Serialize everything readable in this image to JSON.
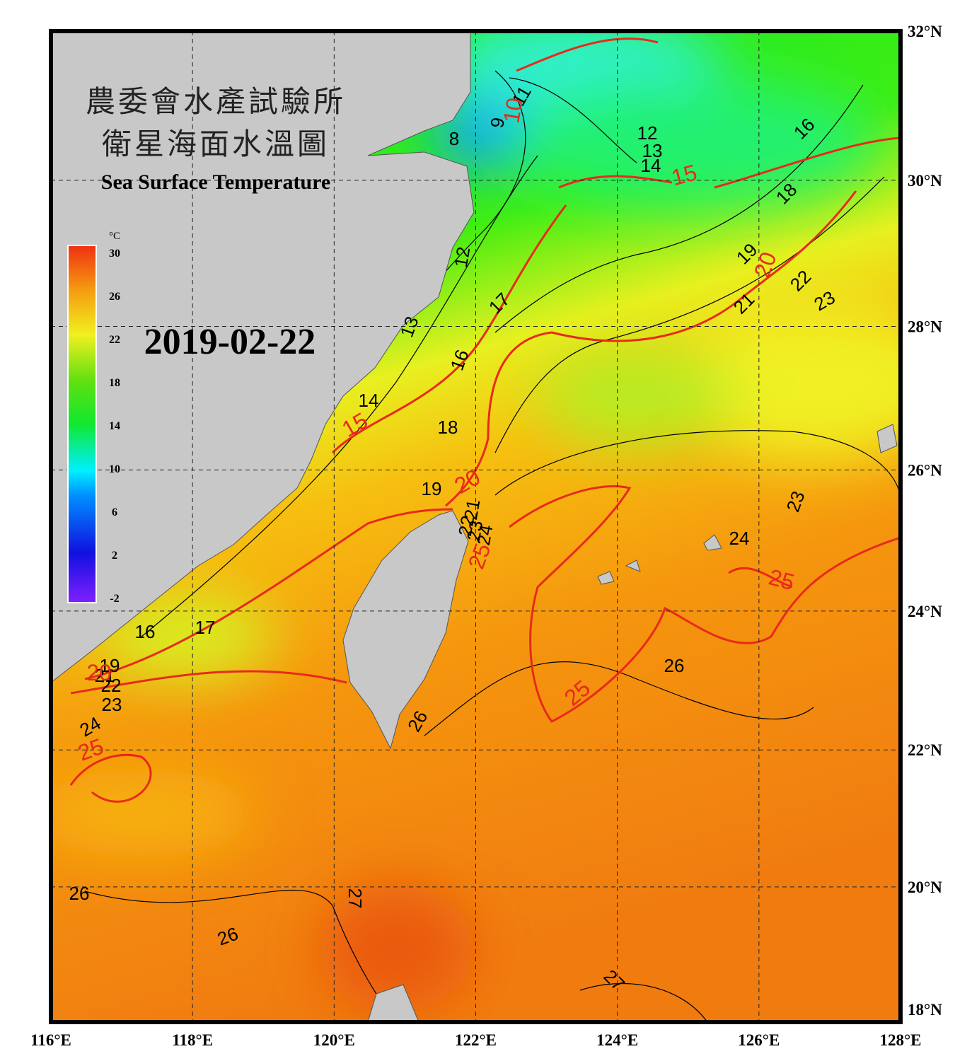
{
  "title": {
    "line1": "農委會水產試驗所",
    "line2": "衛星海面水溫圖",
    "english": "Sea Surface Temperature"
  },
  "date": "2019-02-22",
  "colorbar": {
    "unit": "°C",
    "ticks": [
      30,
      26,
      22,
      18,
      14,
      10,
      6,
      2,
      -2
    ]
  },
  "map": {
    "xticks": [
      {
        "value": 116,
        "label": "116°E"
      },
      {
        "value": 118,
        "label": "118°E"
      },
      {
        "value": 120,
        "label": "120°E"
      },
      {
        "value": 122,
        "label": "122°E"
      },
      {
        "value": 124,
        "label": "124°E"
      },
      {
        "value": 126,
        "label": "126°E"
      },
      {
        "value": 128,
        "label": "128°E"
      }
    ],
    "yticks": [
      {
        "value": 32,
        "label": "32°N"
      },
      {
        "value": 30,
        "label": "30°N"
      },
      {
        "value": 28,
        "label": "28°N"
      },
      {
        "value": 26,
        "label": "26°N"
      },
      {
        "value": 24,
        "label": "24°N"
      },
      {
        "value": 22,
        "label": "22°N"
      },
      {
        "value": 20,
        "label": "20°N"
      },
      {
        "value": 18,
        "label": "18°N"
      }
    ],
    "contour_labels": {
      "black": [
        11,
        9,
        8,
        12,
        13,
        14,
        16,
        18,
        19,
        21,
        22,
        23,
        12,
        13,
        17,
        16,
        14,
        18,
        19,
        21,
        22,
        23,
        24,
        23,
        24,
        26,
        26,
        16,
        17,
        19,
        21,
        22,
        23,
        24,
        26,
        27,
        26,
        27
      ],
      "red": [
        10,
        15,
        20,
        15,
        20,
        25,
        25,
        25,
        25,
        20
      ]
    }
  }
}
